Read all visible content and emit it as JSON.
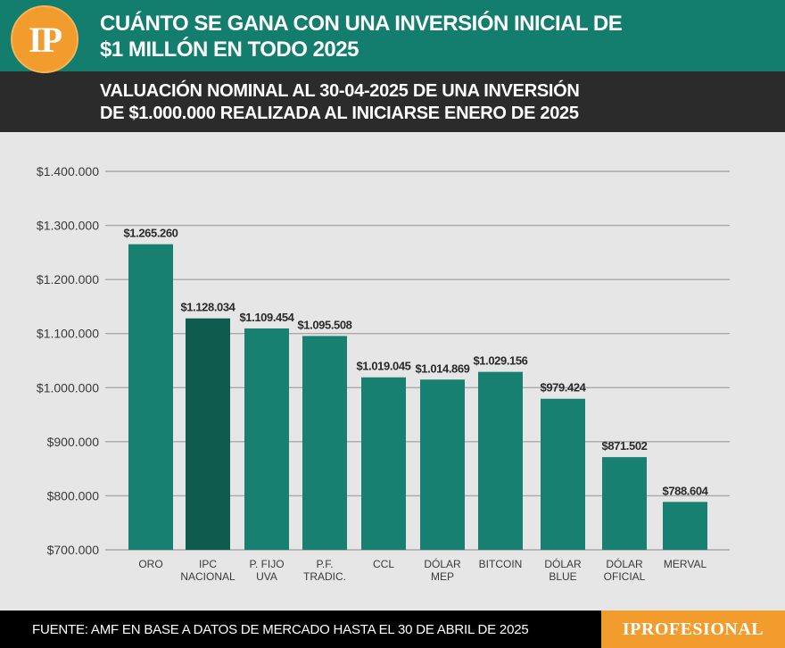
{
  "header": {
    "logo_text": "IP",
    "title": "CUÁNTO SE GANA CON UNA INVERSIÓN INICIAL DE\n$1 MILLÓN EN TODO 2025",
    "subtitle": "VALUACIÓN NOMINAL AL 30-04-2025 DE UNA INVERSIÓN\nDE $1.000.000 REALIZADA AL INICIARSE ENERO DE 2025"
  },
  "footer": {
    "source": "FUENTE: AMF EN BASE A DATOS DE MERCADO HASTA EL 30 DE ABRIL DE 2025",
    "brand": "IPROFESIONAL"
  },
  "colors": {
    "header_green": "#137e6e",
    "subheader_dark": "#2b2b2b",
    "bar": "#178070",
    "bar_highlight": "#0f5c4f",
    "logo_orange": "#f39c2e",
    "background": "#e6e6e6"
  },
  "chart_data": {
    "type": "bar",
    "title": "",
    "xlabel": "",
    "ylabel": "",
    "ylim": [
      700000,
      1400000
    ],
    "yticks": [
      700000,
      800000,
      900000,
      1000000,
      1100000,
      1200000,
      1300000,
      1400000
    ],
    "ytick_labels": [
      "$700.000",
      "$800.000",
      "$900.000",
      "$1.000.000",
      "$1.100.000",
      "$1.200.000",
      "$1.300.000",
      "$1.400.000"
    ],
    "grid": true,
    "categories": [
      [
        "ORO"
      ],
      [
        "IPC",
        "NACIONAL"
      ],
      [
        "P. FIJO",
        "UVA"
      ],
      [
        "P.F.",
        "TRADIC."
      ],
      [
        "CCL"
      ],
      [
        "DÓLAR",
        "MEP"
      ],
      [
        "BITCOIN"
      ],
      [
        "DÓLAR",
        "BLUE"
      ],
      [
        "DÓLAR",
        "OFICIAL"
      ],
      [
        "MERVAL"
      ]
    ],
    "values": [
      1265260,
      1128034,
      1109454,
      1095508,
      1019045,
      1014869,
      1029156,
      979424,
      871502,
      788604
    ],
    "data_labels": [
      "$1.265.260",
      "$1.128.034",
      "$1.109.454",
      "$1.095.508",
      "$1.019.045",
      "$1.014.869",
      "$1.029.156",
      "$979.424",
      "$871.502",
      "$788.604"
    ],
    "highlight_index": 1
  }
}
